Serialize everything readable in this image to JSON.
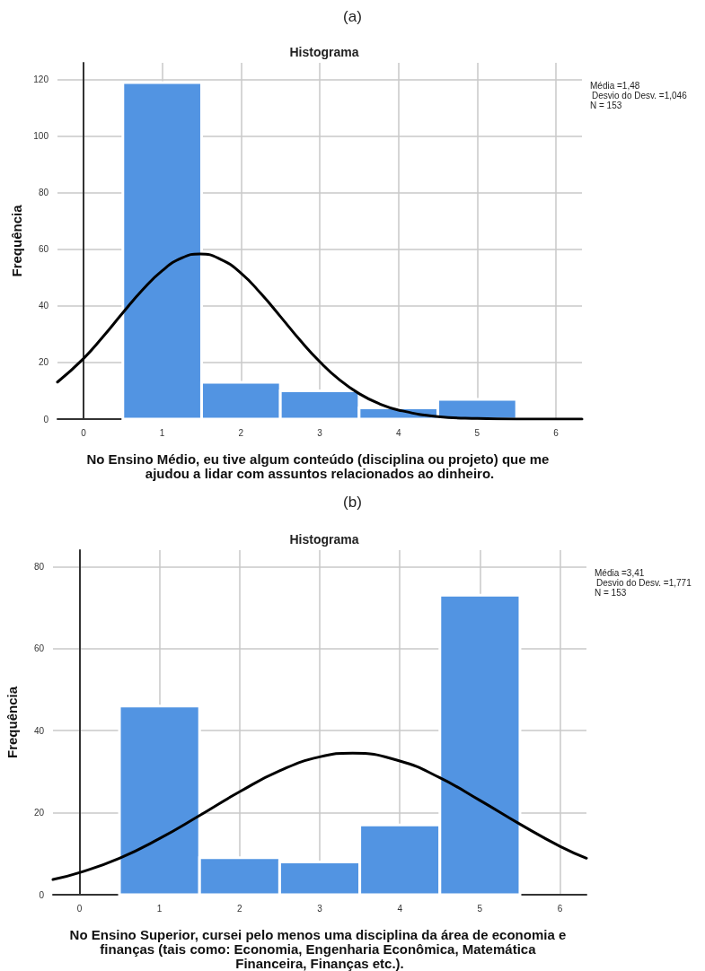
{
  "chart_data": [
    {
      "type": "histogram",
      "title": "Histograma",
      "xlabel": "No Ensino Médio, eu tive algum conteúdo (disciplina ou projeto) que me ajudou a lidar com assuntos relacionados ao dinheiro.",
      "ylabel": "Frequência",
      "annotations": [
        "(a)",
        "Média =1,48",
        "Desvio do Desv. =1,046",
        "N = 153"
      ],
      "bins": [
        0.5,
        1.5,
        2.5,
        3.5,
        4.5,
        5.5
      ],
      "series": [
        {
          "type": "histogram",
          "color": "#5294e2",
          "values": [
            119,
            13,
            10,
            4,
            7
          ]
        },
        {
          "type": "line",
          "color": "#000000",
          "x": [
            -0.33,
            0,
            0.25,
            0.5,
            0.75,
            1,
            1.25,
            1.48,
            1.75,
            2,
            2.25,
            2.5,
            2.75,
            3,
            3.25,
            3.5,
            3.75,
            4,
            4.5,
            5,
            5.5,
            6,
            6.33
          ],
          "values": [
            13.1,
            21.4,
            29.2,
            37.6,
            45.7,
            52.5,
            57.0,
            58.4,
            56.4,
            51.6,
            44.5,
            36.3,
            27.9,
            20.3,
            13.9,
            9.0,
            5.5,
            3.2,
            0.9,
            0.2,
            0,
            0,
            0
          ]
        }
      ],
      "xlim": [
        -0.33,
        6.33
      ],
      "xticks": [
        0,
        1,
        2,
        3,
        4,
        5,
        6
      ],
      "ylim": [
        0,
        126
      ],
      "yticks": [
        0,
        20,
        40,
        60,
        80,
        100,
        120
      ],
      "grid": true,
      "line_style": "solid",
      "marker": "none"
    },
    {
      "type": "histogram",
      "title": "Histograma",
      "xlabel": "No Ensino Superior, cursei pelo menos uma disciplina da área de economia e finanças (tais como: Economia, Engenharia Econômica, Matemática Financeira, Finanças etc.).",
      "ylabel": "Frequência",
      "annotations": [
        "(b)",
        "Média =3,41",
        "Desvio do Desv. =1,771",
        "N = 153"
      ],
      "bins": [
        0.5,
        1.5,
        2.5,
        3.5,
        4.5,
        5.5
      ],
      "series": [
        {
          "type": "histogram",
          "color": "#5294e2",
          "values": [
            46,
            9,
            8,
            17,
            73
          ]
        },
        {
          "type": "line",
          "color": "#000000",
          "x": [
            -0.33,
            0,
            0.5,
            1,
            1.5,
            2,
            2.5,
            3,
            3.41,
            4,
            4.5,
            5,
            5.5,
            6,
            6.33
          ],
          "values": [
            3.7,
            5.4,
            8.9,
            13.7,
            19.3,
            25.1,
            30.2,
            33.6,
            34.5,
            32.6,
            28.5,
            23.0,
            17.2,
            11.8,
            8.9
          ]
        }
      ],
      "xlim": [
        -0.33,
        6.33
      ],
      "xticks": [
        0,
        1,
        2,
        3,
        4,
        5,
        6
      ],
      "ylim": [
        0,
        84
      ],
      "yticks": [
        0,
        20,
        40,
        60,
        80
      ],
      "grid": true,
      "line_style": "solid",
      "marker": "none"
    }
  ]
}
